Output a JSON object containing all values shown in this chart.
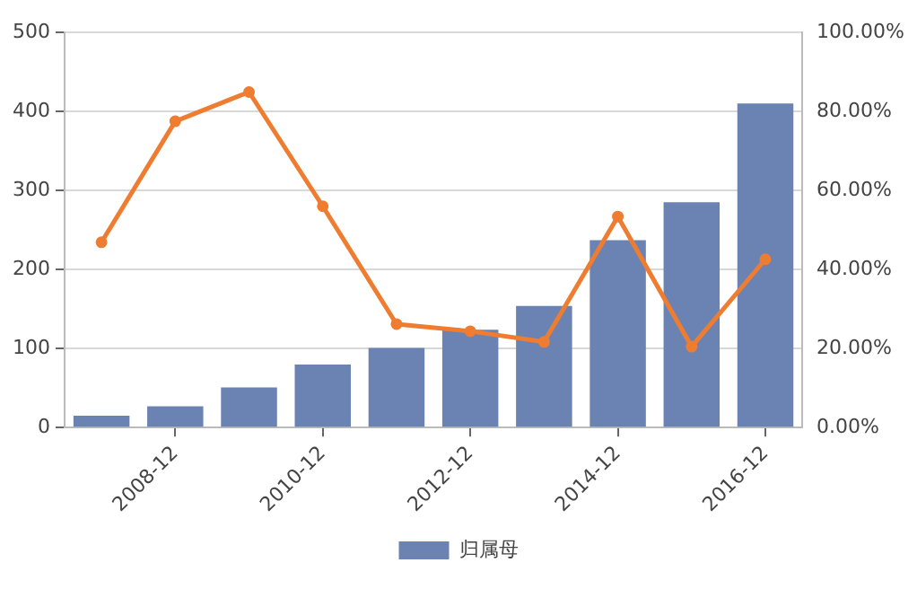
{
  "chart_data": {
    "type": "bar",
    "categories": [
      null,
      "2008-12",
      null,
      "2010-12",
      null,
      "2012-12",
      null,
      "2014-12",
      null,
      "2016-12"
    ],
    "series": [
      {
        "name": "归属母",
        "color": "#6a83b3",
        "values": [
          15,
          27,
          51,
          80,
          101,
          124,
          154,
          237,
          285,
          410
        ]
      },
      {
        "type": "line",
        "axis": "y2",
        "color": "#ee7d31",
        "values": [
          46.9,
          77.5,
          84.9,
          56,
          26.2,
          24.4,
          21.7,
          53.4,
          20.5,
          42.6
        ]
      }
    ],
    "ylim": [
      0,
      500
    ],
    "yticks": [
      0,
      100,
      200,
      300,
      400,
      500
    ],
    "y2lim": [
      0,
      100
    ],
    "y2ticks": [
      {
        "value": 0,
        "label": "0.00%"
      },
      {
        "value": 20,
        "label": "20.00%"
      },
      {
        "value": 40,
        "label": "40.00%"
      },
      {
        "value": 60,
        "label": "60.00%"
      },
      {
        "value": 80,
        "label": "80.00%"
      },
      {
        "value": 100,
        "label": "100.00%"
      }
    ],
    "grid": "y",
    "legend": "bottom",
    "marker": "circle",
    "line_style": "solid"
  }
}
